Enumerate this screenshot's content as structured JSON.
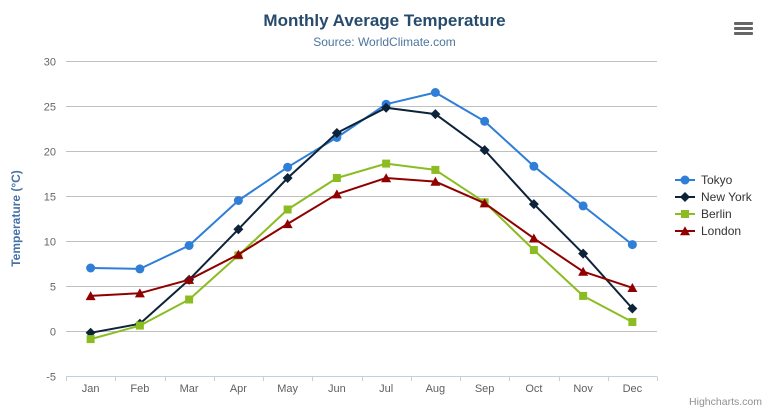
{
  "chart_data": {
    "type": "line",
    "title": "Monthly Average Temperature",
    "subtitle": "Source: WorldClimate.com",
    "categories": [
      "Jan",
      "Feb",
      "Mar",
      "Apr",
      "May",
      "Jun",
      "Jul",
      "Aug",
      "Sep",
      "Oct",
      "Nov",
      "Dec"
    ],
    "xlabel": "",
    "ylabel": "Temperature (°C)",
    "ylim": [
      -5,
      30
    ],
    "ytick_interval": 5,
    "grid": true,
    "legend_position": "right-middle",
    "series": [
      {
        "name": "Tokyo",
        "color": "#2f7ed8",
        "marker": "circle",
        "values": [
          7.0,
          6.9,
          9.5,
          14.5,
          18.2,
          21.5,
          25.2,
          26.5,
          23.3,
          18.3,
          13.9,
          9.6
        ]
      },
      {
        "name": "New York",
        "color": "#0d233a",
        "marker": "diamond",
        "values": [
          -0.2,
          0.8,
          5.7,
          11.3,
          17.0,
          22.0,
          24.8,
          24.1,
          20.1,
          14.1,
          8.6,
          2.5
        ]
      },
      {
        "name": "Berlin",
        "color": "#8bbc21",
        "marker": "square",
        "values": [
          -0.9,
          0.6,
          3.5,
          8.4,
          13.5,
          17.0,
          18.6,
          17.9,
          14.3,
          9.0,
          3.9,
          1.0
        ]
      },
      {
        "name": "London",
        "color": "#910000",
        "marker": "triangle",
        "values": [
          3.9,
          4.2,
          5.7,
          8.5,
          11.9,
          15.2,
          17.0,
          16.6,
          14.2,
          10.3,
          6.6,
          4.8
        ]
      }
    ],
    "colors": {
      "title": "#274b6d",
      "subtitle": "#4d759e",
      "axis_title": "#4872a7",
      "tick_label": "#606060",
      "grid": "#c0c0c0",
      "axis_line": "#c0d0e0",
      "legend_text": "#333333",
      "background": "#ffffff"
    }
  },
  "toolbar": {
    "export_menu_icon": "hamburger-icon"
  },
  "credit": {
    "label": "Highcharts.com"
  }
}
